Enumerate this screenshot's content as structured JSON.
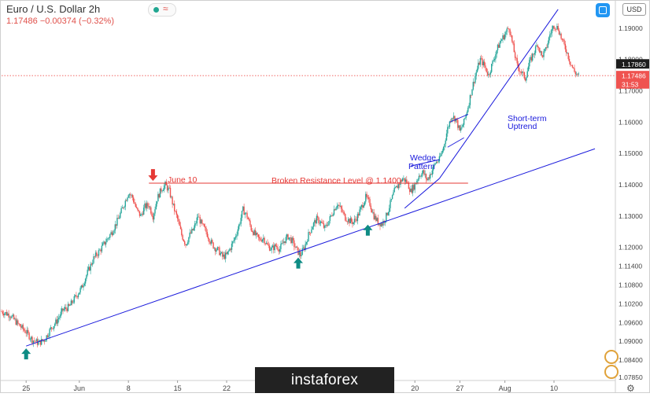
{
  "header": {
    "title": "Euro / U.S. Dollar  2h",
    "quote": "1.17486  −0.00374 (−0.32%)",
    "currency_button": "USD"
  },
  "watermark": "instaforex",
  "colors": {
    "up": "#26a69a",
    "down": "#ef5350",
    "trendline": "#1a1adc",
    "resistance": "#e53935",
    "arrow_up": "#0e8c84",
    "arrow_down": "#e53935"
  },
  "chart_data": {
    "type": "line",
    "title": "Euro / U.S. Dollar",
    "ylim": [
      1.0775,
      1.199
    ],
    "x_ticks": [
      "25",
      "Jun",
      "8",
      "15",
      "22",
      "",
      "",
      "20",
      "27",
      "Aug",
      "10"
    ],
    "y_ticks": [
      "1.19000",
      "1.18000",
      "1.17000",
      "1.16000",
      "1.15000",
      "1.14000",
      "1.13000",
      "1.12000",
      "1.11400",
      "1.10800",
      "1.10200",
      "1.09600",
      "1.09000",
      "1.08400",
      "1.07850"
    ],
    "price_labels": [
      {
        "value": 1.1786,
        "text": "1.17860",
        "style": "dark"
      },
      {
        "value": 1.17486,
        "text": "1.17486",
        "style": "red"
      },
      {
        "value": 1.1722,
        "text": "31:53",
        "style": "red"
      }
    ],
    "current_price": 1.17486,
    "price_path": [
      [
        0,
        1.0995
      ],
      [
        4,
        1.0985
      ],
      [
        8,
        1.0955
      ],
      [
        12,
        1.093
      ],
      [
        15,
        1.0905
      ],
      [
        18,
        1.0895
      ],
      [
        21,
        1.0905
      ],
      [
        24,
        1.094
      ],
      [
        27,
        1.0965
      ],
      [
        30,
        1.1
      ],
      [
        33,
        1.101
      ],
      [
        36,
        1.104
      ],
      [
        39,
        1.107
      ],
      [
        42,
        1.112
      ],
      [
        45,
        1.1165
      ],
      [
        48,
        1.119
      ],
      [
        51,
        1.122
      ],
      [
        54,
        1.125
      ],
      [
        57,
        1.129
      ],
      [
        60,
        1.134
      ],
      [
        62,
        1.1375
      ],
      [
        64,
        1.136
      ],
      [
        66,
        1.132
      ],
      [
        68,
        1.13
      ],
      [
        70,
        1.133
      ],
      [
        72,
        1.1335
      ],
      [
        74,
        1.13
      ],
      [
        76,
        1.1355
      ],
      [
        78,
        1.1385
      ],
      [
        80,
        1.14
      ],
      [
        82,
        1.138
      ],
      [
        84,
        1.133
      ],
      [
        86,
        1.129
      ],
      [
        88,
        1.124
      ],
      [
        90,
        1.121
      ],
      [
        92,
        1.124
      ],
      [
        94,
        1.126
      ],
      [
        96,
        1.13
      ],
      [
        98,
        1.127
      ],
      [
        100,
        1.125
      ],
      [
        102,
        1.122
      ],
      [
        104,
        1.12
      ],
      [
        106,
        1.119
      ],
      [
        108,
        1.117
      ],
      [
        110,
        1.1175
      ],
      [
        112,
        1.12
      ],
      [
        114,
        1.123
      ],
      [
        116,
        1.127
      ],
      [
        118,
        1.132
      ],
      [
        120,
        1.13
      ],
      [
        122,
        1.126
      ],
      [
        124,
        1.124
      ],
      [
        126,
        1.1225
      ],
      [
        128,
        1.123
      ],
      [
        130,
        1.1205
      ],
      [
        132,
        1.1195
      ],
      [
        134,
        1.1205
      ],
      [
        136,
        1.1195
      ],
      [
        138,
        1.122
      ],
      [
        140,
        1.1235
      ],
      [
        142,
        1.122
      ],
      [
        144,
        1.1195
      ],
      [
        146,
        1.1175
      ],
      [
        148,
        1.12
      ],
      [
        150,
        1.124
      ],
      [
        152,
        1.127
      ],
      [
        154,
        1.129
      ],
      [
        156,
        1.128
      ],
      [
        158,
        1.126
      ],
      [
        160,
        1.1285
      ],
      [
        162,
        1.1315
      ],
      [
        164,
        1.134
      ],
      [
        166,
        1.132
      ],
      [
        168,
        1.1295
      ],
      [
        170,
        1.1285
      ],
      [
        172,
        1.128
      ],
      [
        174,
        1.13
      ],
      [
        176,
        1.133
      ],
      [
        178,
        1.136
      ],
      [
        180,
        1.134
      ],
      [
        182,
        1.13
      ],
      [
        184,
        1.128
      ],
      [
        186,
        1.1275
      ],
      [
        188,
        1.13
      ],
      [
        190,
        1.134
      ],
      [
        192,
        1.138
      ],
      [
        194,
        1.14
      ],
      [
        196,
        1.142
      ],
      [
        198,
        1.141
      ],
      [
        200,
        1.138
      ],
      [
        202,
        1.14
      ],
      [
        204,
        1.143
      ],
      [
        206,
        1.144
      ],
      [
        208,
        1.1415
      ],
      [
        210,
        1.144
      ],
      [
        212,
        1.147
      ],
      [
        214,
        1.148
      ],
      [
        216,
        1.152
      ],
      [
        218,
        1.158
      ],
      [
        220,
        1.162
      ],
      [
        222,
        1.161
      ],
      [
        224,
        1.157
      ],
      [
        226,
        1.16
      ],
      [
        228,
        1.165
      ],
      [
        230,
        1.171
      ],
      [
        232,
        1.176
      ],
      [
        234,
        1.18
      ],
      [
        236,
        1.178
      ],
      [
        238,
        1.175
      ],
      [
        240,
        1.179
      ],
      [
        242,
        1.183
      ],
      [
        244,
        1.186
      ],
      [
        246,
        1.188
      ],
      [
        248,
        1.1905
      ],
      [
        250,
        1.184
      ],
      [
        252,
        1.178
      ],
      [
        254,
        1.176
      ],
      [
        256,
        1.174
      ],
      [
        258,
        1.179
      ],
      [
        260,
        1.182
      ],
      [
        262,
        1.185
      ],
      [
        264,
        1.181
      ],
      [
        266,
        1.183
      ],
      [
        268,
        1.188
      ],
      [
        270,
        1.191
      ],
      [
        272,
        1.19
      ],
      [
        274,
        1.186
      ],
      [
        276,
        1.183
      ],
      [
        278,
        1.179
      ],
      [
        280,
        1.176
      ],
      [
        282,
        1.17486
      ]
    ],
    "annotations": [
      {
        "text": "June 10"
      },
      {
        "text": "Broken Resistance Level @ 1.1400"
      },
      {
        "text": "Wedge"
      },
      {
        "text": "Pattern"
      },
      {
        "text": "Short-term"
      },
      {
        "text": "Uptrend"
      }
    ],
    "resistance_level": 1.1405,
    "main_trendline": [
      [
        12,
        1.0885
      ],
      [
        290,
        1.1515
      ]
    ],
    "short_trendline": [
      [
        214,
        1.142
      ],
      [
        272,
        1.196
      ]
    ],
    "wedge_lines": [
      [
        [
          197,
          1.1325
        ],
        [
          214,
          1.142
        ]
      ],
      [
        [
          200,
          1.146
        ],
        [
          214,
          1.148
        ]
      ]
    ],
    "arrows_up": [
      [
        12,
        1.086
      ],
      [
        145,
        1.115
      ],
      [
        179,
        1.1255
      ]
    ],
    "arrows_down": [
      [
        74,
        1.143
      ]
    ]
  }
}
